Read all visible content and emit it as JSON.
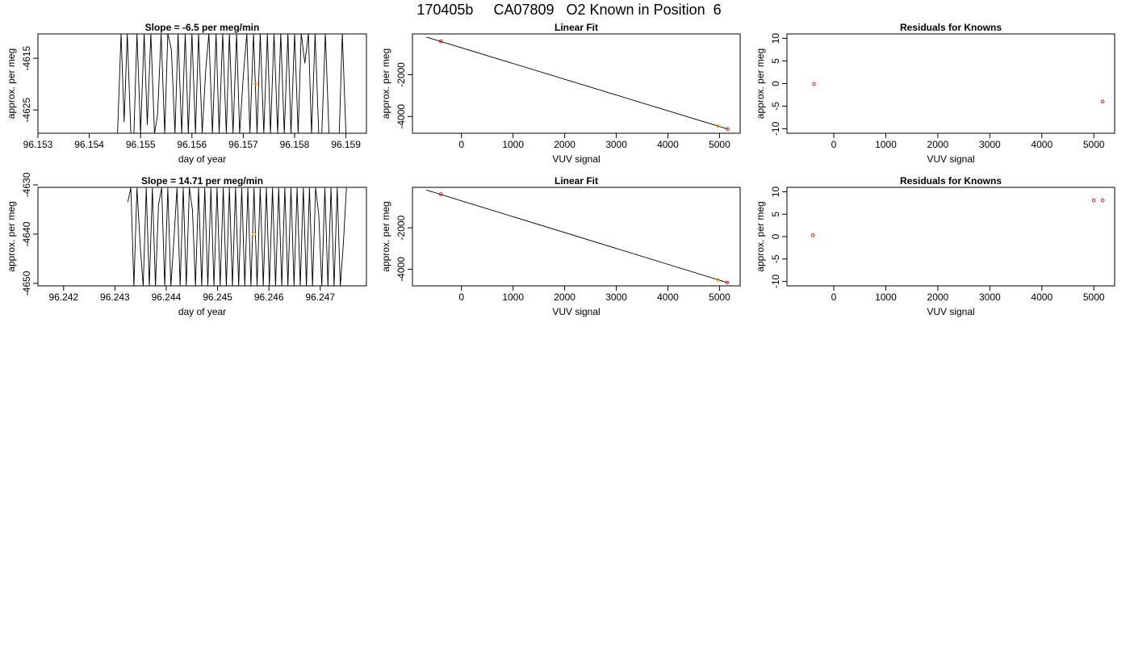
{
  "page": {
    "title": "170405b     CA07809   O2 Known in Position  6"
  },
  "colors": {
    "frame": "#000000",
    "series": "#000000",
    "point_red": "#cc2222",
    "point_orange": "#ff9900"
  },
  "chart_data": [
    {
      "id": "p11",
      "type": "line",
      "title": "Slope =  -6.5  per meg/min",
      "xlabel": "day of year",
      "ylabel": "approx. per meg",
      "xlim": [
        96.153,
        96.1594
      ],
      "ylim": [
        -4629.5,
        -4610.3
      ],
      "xticks": [
        96.153,
        96.154,
        96.155,
        96.156,
        96.157,
        96.158,
        96.159
      ],
      "xtick_labels": [
        "96.153",
        "96.154",
        "96.155",
        "96.156",
        "96.157",
        "96.158",
        "96.159"
      ],
      "yticks": [
        -4615,
        -4625
      ],
      "ytick_labels": [
        "-4615",
        "-4625"
      ],
      "series": [
        {
          "x": [
            96.15455,
            96.15462,
            96.15468,
            96.15474,
            96.15481,
            96.15487,
            96.15493,
            96.155,
            96.15507,
            96.15513,
            96.1552,
            96.15527,
            96.15533,
            96.1554,
            96.15547,
            96.15553,
            96.1556,
            96.15567,
            96.15573,
            96.1558,
            96.15587,
            96.15593,
            96.156,
            96.15607,
            96.15613,
            96.1562,
            96.15627,
            96.15633,
            96.1564,
            96.15647,
            96.15653,
            96.1566,
            96.15667,
            96.15673,
            96.1568,
            96.15687,
            96.15693,
            96.157,
            96.15707,
            96.15713,
            96.1572,
            96.15727,
            96.15733,
            96.1574,
            96.15747,
            96.15753,
            96.1576,
            96.15767,
            96.15773,
            96.1578,
            96.15787,
            96.15793,
            96.158,
            96.15807,
            96.15813,
            96.1582,
            96.15827,
            96.15833,
            96.1584,
            96.15847,
            96.15853,
            96.1586,
            96.15867,
            96.15873,
            96.1588,
            96.15887,
            96.15893,
            96.159,
            96.15907
          ],
          "y": [
            -4629.6,
            -4610.2,
            -4627.4,
            -4610.2,
            -4629.6,
            -4629.6,
            -4610.2,
            -4629.6,
            -4610.2,
            -4627.9,
            -4610.2,
            -4629.6,
            -4626.0,
            -4610.2,
            -4629.6,
            -4610.2,
            -4613.3,
            -4629.6,
            -4610.2,
            -4629.6,
            -4610.2,
            -4629.6,
            -4610.2,
            -4629.6,
            -4610.2,
            -4629.6,
            -4617.0,
            -4610.2,
            -4629.6,
            -4610.2,
            -4629.6,
            -4610.2,
            -4629.6,
            -4610.2,
            -4629.6,
            -4610.2,
            -4629.6,
            -4618.5,
            -4610.2,
            -4629.6,
            -4610.2,
            -4629.6,
            -4610.2,
            -4629.6,
            -4610.2,
            -4629.6,
            -4610.2,
            -4629.6,
            -4610.2,
            -4629.6,
            -4610.2,
            -4629.6,
            -4610.2,
            -4629.6,
            -4610.2,
            -4616.0,
            -4610.2,
            -4629.6,
            -4610.2,
            -4629.6,
            -4629.6,
            -4610.2,
            -4629.6,
            -4629.6,
            -4629.6,
            -4629.6,
            -4610.2,
            -4629.6,
            -4629.6
          ]
        }
      ],
      "points": [
        {
          "x": 96.15725,
          "y": -4620.0,
          "color": "orange"
        }
      ]
    },
    {
      "id": "p12",
      "type": "scatter",
      "title": "Linear Fit",
      "xlabel": "VUV signal",
      "ylabel": "approx. per meg",
      "xlim": [
        -950,
        5400
      ],
      "ylim": [
        -4800,
        -50
      ],
      "xticks": [
        0,
        1000,
        2000,
        3000,
        4000,
        5000
      ],
      "xtick_labels": [
        "0",
        "1000",
        "2000",
        "3000",
        "4000",
        "5000"
      ],
      "yticks": [
        -2000,
        -4000
      ],
      "ytick_labels": [
        "-2000",
        "-4000"
      ],
      "fit_line": [
        [
          -680,
          -200
        ],
        [
          5160,
          -4600
        ]
      ],
      "points": [
        {
          "x": -400,
          "y": -400,
          "color": "red"
        },
        {
          "x": 4970,
          "y": -4450,
          "color": "orange"
        },
        {
          "x": 5160,
          "y": -4600,
          "color": "red"
        }
      ]
    },
    {
      "id": "p13",
      "type": "scatter",
      "title": "Residuals for Knowns",
      "xlabel": "VUV signal",
      "ylabel": "approx. per meg",
      "xlim": [
        -900,
        5400
      ],
      "ylim": [
        -11,
        11
      ],
      "xticks": [
        0,
        1000,
        2000,
        3000,
        4000,
        5000
      ],
      "xtick_labels": [
        "0",
        "1000",
        "2000",
        "3000",
        "4000",
        "5000"
      ],
      "yticks": [
        10,
        5,
        0,
        -5,
        -10
      ],
      "ytick_labels": [
        "10",
        "5",
        "0",
        "-5",
        "-10"
      ],
      "points": [
        {
          "x": -380,
          "y": -0.1,
          "color": "red"
        },
        {
          "x": 5170,
          "y": -4.0,
          "color": "red"
        }
      ]
    },
    {
      "id": "p21",
      "type": "line",
      "title": "Slope =  14.71  per meg/min",
      "xlabel": "day of year",
      "ylabel": "approx. per meg",
      "xlim": [
        96.2415,
        96.2479
      ],
      "ylim": [
        -4650.5,
        -4630.5
      ],
      "xticks": [
        96.242,
        96.243,
        96.244,
        96.245,
        96.246,
        96.247
      ],
      "xtick_labels": [
        "96.242",
        "96.243",
        "96.244",
        "96.245",
        "96.246",
        "96.247"
      ],
      "yticks": [
        -4630,
        -4640,
        -4650
      ],
      "ytick_labels": [
        "-4630",
        "-4640",
        "-4650"
      ],
      "series": [
        {
          "x": [
            96.24325,
            96.24331,
            96.24337,
            96.24343,
            96.24349,
            96.24355,
            96.24361,
            96.24367,
            96.24373,
            96.24379,
            96.24385,
            96.24391,
            96.24397,
            96.24403,
            96.24409,
            96.24415,
            96.24421,
            96.24427,
            96.24433,
            96.24439,
            96.24445,
            96.24451,
            96.24457,
            96.24463,
            96.24469,
            96.24475,
            96.24481,
            96.24487,
            96.24493,
            96.24499,
            96.24505,
            96.24511,
            96.24517,
            96.24523,
            96.24529,
            96.24535,
            96.24541,
            96.24547,
            96.24553,
            96.24559,
            96.24565,
            96.24571,
            96.24577,
            96.24583,
            96.24589,
            96.24595,
            96.24601,
            96.24607,
            96.24613,
            96.24619,
            96.24625,
            96.24631,
            96.24637,
            96.24643,
            96.24649,
            96.24655,
            96.24661,
            96.24667,
            96.24673,
            96.24679,
            96.24685,
            96.24691,
            96.24697,
            96.24703,
            96.24709,
            96.24715,
            96.24721,
            96.24727,
            96.24733,
            96.24739,
            96.24745,
            96.24751
          ],
          "y": [
            -4633.5,
            -4630.6,
            -4650.6,
            -4630.6,
            -4642.0,
            -4650.6,
            -4630.6,
            -4650.6,
            -4630.6,
            -4650.6,
            -4634.0,
            -4630.6,
            -4650.6,
            -4630.6,
            -4650.6,
            -4641.0,
            -4630.6,
            -4650.6,
            -4630.6,
            -4650.6,
            -4630.6,
            -4635.0,
            -4650.6,
            -4630.6,
            -4650.6,
            -4630.6,
            -4650.6,
            -4630.6,
            -4650.6,
            -4630.6,
            -4650.6,
            -4630.6,
            -4650.6,
            -4630.6,
            -4650.6,
            -4630.6,
            -4650.6,
            -4630.6,
            -4650.6,
            -4630.6,
            -4650.6,
            -4630.6,
            -4650.6,
            -4630.6,
            -4650.6,
            -4630.6,
            -4650.6,
            -4630.6,
            -4650.6,
            -4630.6,
            -4650.6,
            -4630.6,
            -4650.6,
            -4630.6,
            -4650.6,
            -4630.6,
            -4650.6,
            -4630.6,
            -4650.6,
            -4630.6,
            -4650.6,
            -4630.6,
            -4636.0,
            -4650.6,
            -4630.6,
            -4650.6,
            -4630.6,
            -4650.6,
            -4630.6,
            -4650.6,
            -4642.0,
            -4630.6
          ]
        }
      ],
      "points": [
        {
          "x": 96.24571,
          "y": -4640.0,
          "color": "orange"
        }
      ]
    },
    {
      "id": "p22",
      "type": "scatter",
      "title": "Linear Fit",
      "xlabel": "VUV signal",
      "ylabel": "approx. per meg",
      "xlim": [
        -950,
        5400
      ],
      "ylim": [
        -4800,
        -50
      ],
      "xticks": [
        0,
        1000,
        2000,
        3000,
        4000,
        5000
      ],
      "xtick_labels": [
        "0",
        "1000",
        "2000",
        "3000",
        "4000",
        "5000"
      ],
      "yticks": [
        -2000,
        -4000
      ],
      "ytick_labels": [
        "-2000",
        "-4000"
      ],
      "fit_line": [
        [
          -680,
          -180
        ],
        [
          5160,
          -4650
        ]
      ],
      "points": [
        {
          "x": -400,
          "y": -380,
          "color": "red"
        },
        {
          "x": 4970,
          "y": -4520,
          "color": "orange"
        },
        {
          "x": 5150,
          "y": -4640,
          "color": "red"
        }
      ]
    },
    {
      "id": "p23",
      "type": "scatter",
      "title": "Residuals for Knowns",
      "xlabel": "VUV signal",
      "ylabel": "approx. per meg",
      "xlim": [
        -900,
        5400
      ],
      "ylim": [
        -11,
        11
      ],
      "xticks": [
        0,
        1000,
        2000,
        3000,
        4000,
        5000
      ],
      "xtick_labels": [
        "0",
        "1000",
        "2000",
        "3000",
        "4000",
        "5000"
      ],
      "yticks": [
        10,
        5,
        0,
        -5,
        -10
      ],
      "ytick_labels": [
        "10",
        "5",
        "0",
        "-5",
        "-10"
      ],
      "points": [
        {
          "x": -400,
          "y": 0.3,
          "color": "red"
        },
        {
          "x": 5000,
          "y": 8.1,
          "color": "red"
        },
        {
          "x": 5170,
          "y": 8.1,
          "color": "red"
        }
      ]
    }
  ]
}
